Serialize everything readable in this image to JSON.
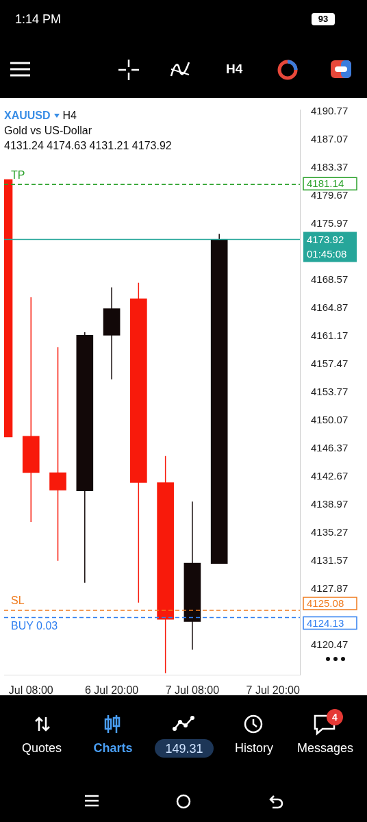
{
  "chart_data": {
    "type": "candlestick",
    "title": "XAUUSD",
    "subtitle": "Gold vs US-Dollar",
    "categories": [
      null,
      "Jul 08:00",
      null,
      null,
      "6 Jul 20:00",
      null,
      null,
      "7 Jul 08:00",
      null,
      null,
      "7 Jul 20:00",
      null
    ],
    "ohlc": [
      [
        4181.8,
        4181.8,
        4147.9,
        4147.9
      ],
      [
        4148.0,
        4166.3,
        4136.7,
        4143.2
      ],
      [
        4143.2,
        4159.7,
        4131.6,
        4140.9
      ],
      [
        4140.8,
        4161.7,
        4128.7,
        4161.3
      ],
      [
        4161.3,
        4167.6,
        4155.5,
        4164.8
      ],
      [
        4166.1,
        4168.2,
        4126.1,
        4141.9
      ],
      [
        4141.9,
        4145.4,
        4116.8,
        4123.9
      ],
      [
        4123.6,
        4139.4,
        4119.9,
        4131.3
      ],
      [
        4131.24,
        4174.63,
        4131.21,
        4173.92
      ],
      null,
      null,
      null
    ],
    "colors": [
      "#f81a0b",
      "#f81a0b",
      "#f81a0b",
      "#120808",
      "#120808",
      "#f81a0b",
      "#f81a0b",
      "#120808",
      "#120808",
      null,
      null,
      null
    ],
    "ylim": [
      4116.6,
      4191.0
    ],
    "yticks": [
      4190.77,
      4187.07,
      4183.37,
      4179.67,
      4175.97,
      4168.57,
      4164.87,
      4161.17,
      4157.47,
      4153.77,
      4150.07,
      4146.37,
      4142.67,
      4138.97,
      4135.27,
      4131.57,
      4127.87,
      4120.47
    ],
    "ref_lines": [
      {
        "axis": "y",
        "value": 4181.14,
        "label": "4181.14",
        "color": "#2aa12a",
        "line_style": "dashed"
      },
      {
        "axis": "y",
        "value": 4173.92,
        "label": "4173.92",
        "color": "#26a69a",
        "line_style": "solid"
      },
      {
        "axis": "y",
        "value": 4125.08,
        "label": "4125.08",
        "color": "#f07b1d",
        "line_style": "dashed"
      },
      {
        "axis": "y",
        "value": 4124.13,
        "label": "4124.13",
        "color": "#2f7ff0",
        "line_style": "dashed"
      }
    ],
    "annotations": [
      "4131.24 4174.63 4131.21 4173.92",
      "H4",
      "01:45:08",
      "1:14 PM",
      "93",
      "H4",
      "Quotes",
      "Charts",
      "149.31",
      "History",
      "Messages",
      "4",
      {
        "text": "TP",
        "y": 4181.14
      },
      {
        "text": "SL",
        "y": 4125.08
      },
      {
        "text": "BUY 0.03",
        "y": 4124.13
      }
    ],
    "grid": false,
    "legend": false
  }
}
